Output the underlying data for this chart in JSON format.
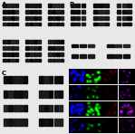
{
  "bg_color": "#e8e8e8",
  "panel_bg": "#ffffff",
  "label_A": "A",
  "label_B": "B",
  "label_C": "C",
  "label_D": "D",
  "fluor_bases": [
    [
      [
        0.0,
        0.0,
        0.5
      ],
      [
        0.0,
        0.4,
        0.0
      ],
      [
        0.08,
        0.0,
        0.0
      ],
      [
        0.12,
        0.0,
        0.18
      ]
    ],
    [
      [
        0.0,
        0.0,
        0.25
      ],
      [
        0.0,
        0.2,
        0.0
      ],
      [
        0.03,
        0.0,
        0.0
      ],
      [
        0.06,
        0.0,
        0.09
      ]
    ],
    [
      [
        0.0,
        0.0,
        0.55
      ],
      [
        0.0,
        0.45,
        0.0
      ],
      [
        0.09,
        0.0,
        0.0
      ],
      [
        0.14,
        0.0,
        0.2
      ]
    ],
    [
      [
        0.0,
        0.0,
        0.28
      ],
      [
        0.0,
        0.22,
        0.0
      ],
      [
        0.04,
        0.0,
        0.0
      ],
      [
        0.07,
        0.0,
        0.11
      ]
    ]
  ]
}
